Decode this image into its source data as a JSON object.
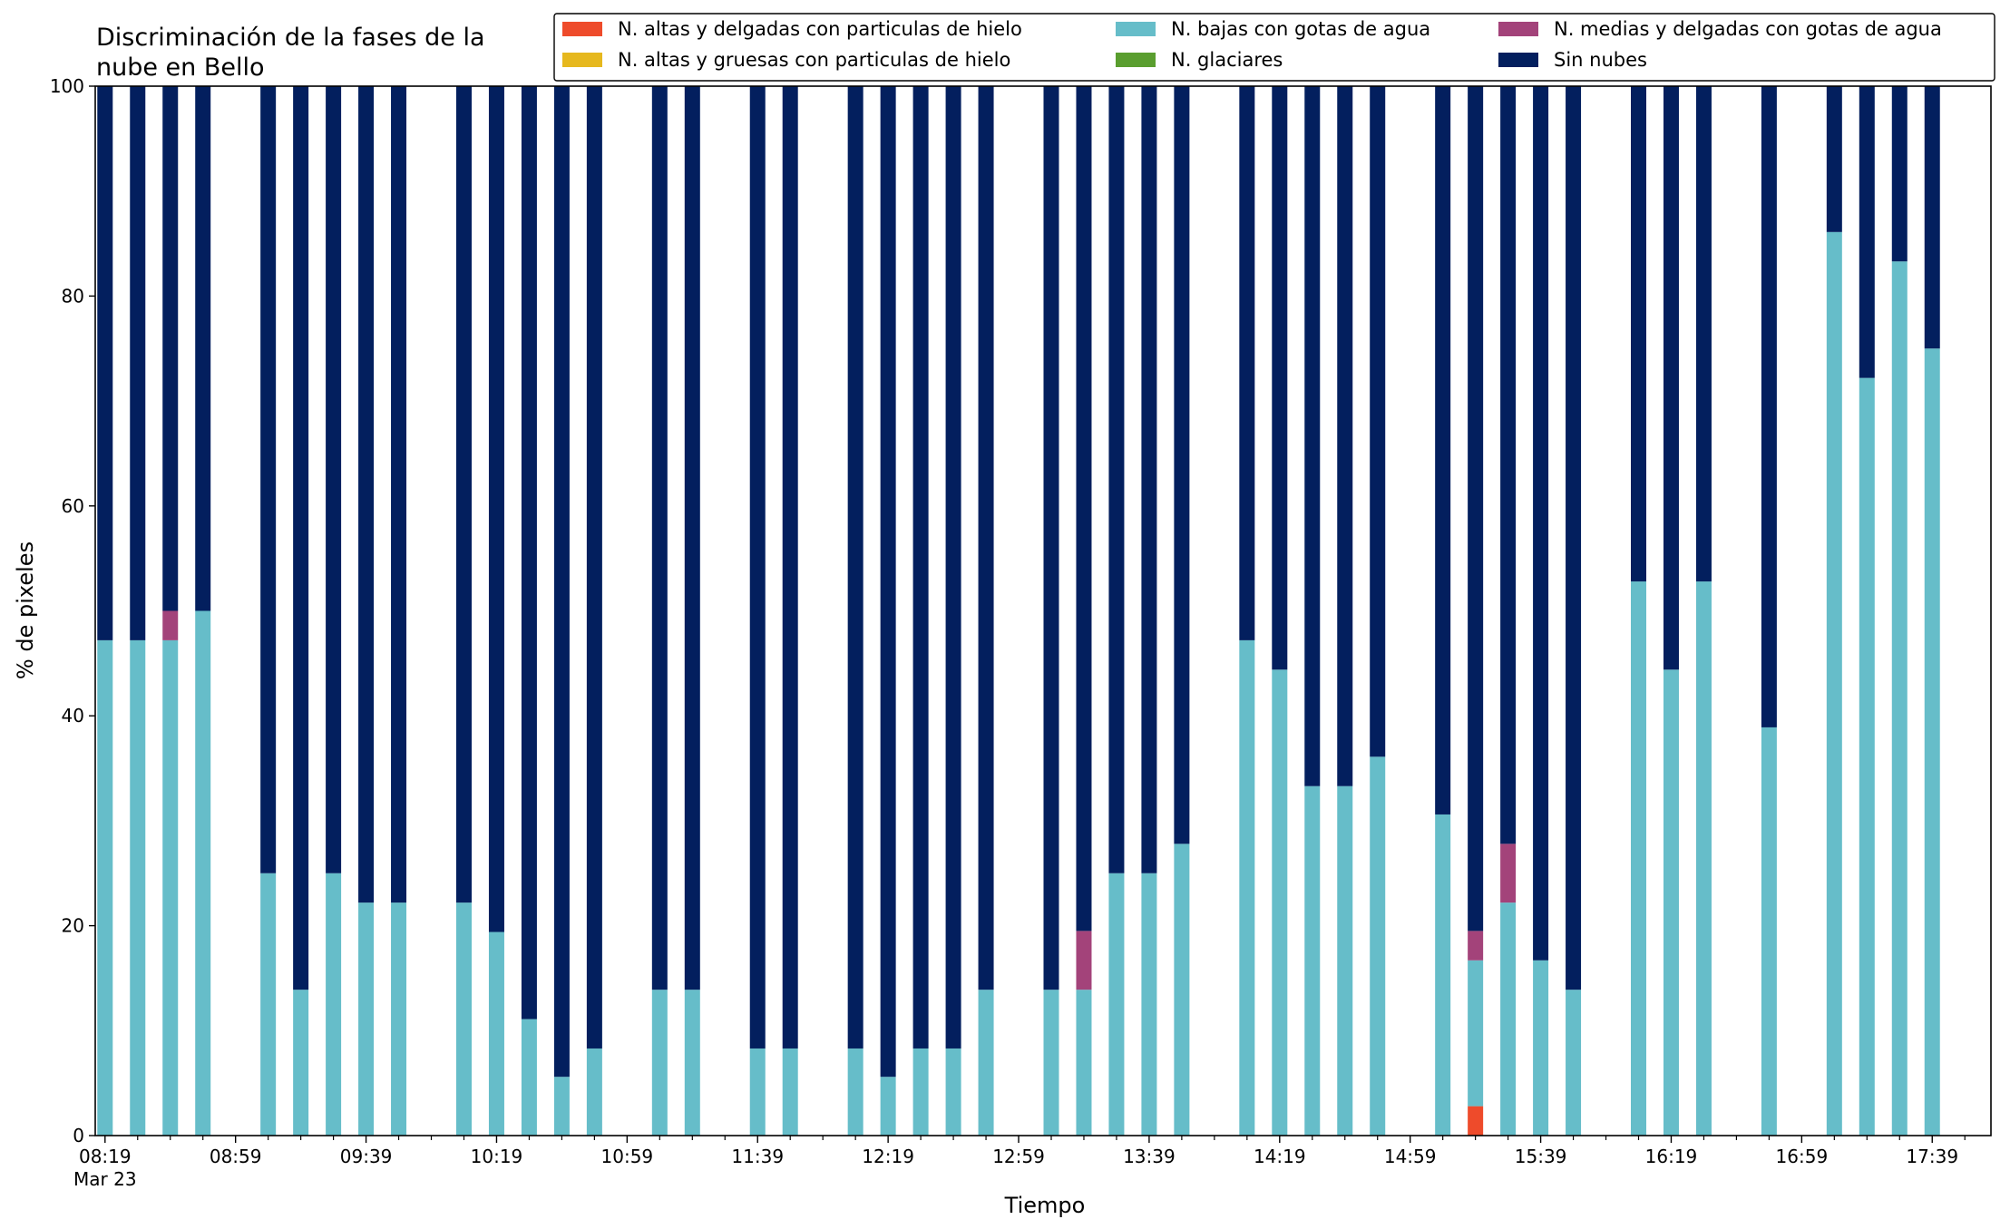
{
  "chart_data": {
    "type": "bar",
    "stacked": true,
    "title_lines": [
      "Discriminación de la fases de la",
      "nube en Bello"
    ],
    "xlabel": "Tiempo",
    "ylabel": "% de pixeles",
    "ylim": [
      0,
      100
    ],
    "yticks": [
      0,
      20,
      40,
      60,
      80,
      100
    ],
    "x_unit": "minutes since 08:19",
    "xlim": [
      -3,
      578
    ],
    "xticks": [
      {
        "m": 0,
        "label": "08:19",
        "label2": "Mar 23"
      },
      {
        "m": 40,
        "label": "08:59"
      },
      {
        "m": 80,
        "label": "09:39"
      },
      {
        "m": 120,
        "label": "10:19"
      },
      {
        "m": 160,
        "label": "10:59"
      },
      {
        "m": 200,
        "label": "11:39"
      },
      {
        "m": 240,
        "label": "12:19"
      },
      {
        "m": 280,
        "label": "12:59"
      },
      {
        "m": 320,
        "label": "13:39"
      },
      {
        "m": 360,
        "label": "14:19"
      },
      {
        "m": 400,
        "label": "14:59"
      },
      {
        "m": 440,
        "label": "15:39"
      },
      {
        "m": 480,
        "label": "16:19"
      },
      {
        "m": 520,
        "label": "16:59"
      },
      {
        "m": 560,
        "label": "17:39"
      }
    ],
    "grid": false,
    "legend_position": "top-right",
    "series": [
      {
        "key": "altas_delgadas_hielo",
        "name": "N. altas y delgadas con particulas de hielo",
        "color": "#ee4b2b"
      },
      {
        "key": "altas_gruesas_hielo",
        "name": "N. altas y gruesas con particulas de hielo",
        "color": "#e6b81e"
      },
      {
        "key": "bajas_agua",
        "name": "N. bajas con gotas de agua",
        "color": "#66bdc9"
      },
      {
        "key": "glaciares",
        "name": "N. glaciares",
        "color": "#5a9e2f"
      },
      {
        "key": "medias_delgadas_agua",
        "name": "N. medias y delgadas con gotas de agua",
        "color": "#a3437a"
      },
      {
        "key": "sin_nubes",
        "name": "Sin nubes",
        "color": "#031f5e"
      }
    ],
    "stack_order": [
      "altas_delgadas_hielo",
      "altas_gruesas_hielo",
      "bajas_agua",
      "glaciares",
      "medias_delgadas_agua",
      "sin_nubes"
    ],
    "legend_order": [
      "altas_delgadas_hielo",
      "altas_gruesas_hielo",
      "bajas_agua",
      "glaciares",
      "medias_delgadas_agua",
      "sin_nubes"
    ],
    "bars": [
      {
        "m": 0,
        "altas_delgadas_hielo": 0,
        "altas_gruesas_hielo": 0,
        "bajas_agua": 47.2,
        "glaciares": 0,
        "medias_delgadas_agua": 0,
        "sin_nubes": 52.8
      },
      {
        "m": 10,
        "altas_delgadas_hielo": 0,
        "altas_gruesas_hielo": 0,
        "bajas_agua": 47.2,
        "glaciares": 0,
        "medias_delgadas_agua": 0,
        "sin_nubes": 52.8
      },
      {
        "m": 20,
        "altas_delgadas_hielo": 0,
        "altas_gruesas_hielo": 0,
        "bajas_agua": 47.2,
        "glaciares": 0,
        "medias_delgadas_agua": 2.8,
        "sin_nubes": 50.0
      },
      {
        "m": 30,
        "altas_delgadas_hielo": 0,
        "altas_gruesas_hielo": 0,
        "bajas_agua": 50.0,
        "glaciares": 0,
        "medias_delgadas_agua": 0,
        "sin_nubes": 50.0
      },
      {
        "m": 50,
        "altas_delgadas_hielo": 0,
        "altas_gruesas_hielo": 0,
        "bajas_agua": 25.0,
        "glaciares": 0,
        "medias_delgadas_agua": 0,
        "sin_nubes": 75.0
      },
      {
        "m": 60,
        "altas_delgadas_hielo": 0,
        "altas_gruesas_hielo": 0,
        "bajas_agua": 13.9,
        "glaciares": 0,
        "medias_delgadas_agua": 0,
        "sin_nubes": 86.1
      },
      {
        "m": 70,
        "altas_delgadas_hielo": 0,
        "altas_gruesas_hielo": 0,
        "bajas_agua": 25.0,
        "glaciares": 0,
        "medias_delgadas_agua": 0,
        "sin_nubes": 75.0
      },
      {
        "m": 80,
        "altas_delgadas_hielo": 0,
        "altas_gruesas_hielo": 0,
        "bajas_agua": 22.2,
        "glaciares": 0,
        "medias_delgadas_agua": 0,
        "sin_nubes": 77.8
      },
      {
        "m": 90,
        "altas_delgadas_hielo": 0,
        "altas_gruesas_hielo": 0,
        "bajas_agua": 22.2,
        "glaciares": 0,
        "medias_delgadas_agua": 0,
        "sin_nubes": 77.8
      },
      {
        "m": 110,
        "altas_delgadas_hielo": 0,
        "altas_gruesas_hielo": 0,
        "bajas_agua": 22.2,
        "glaciares": 0,
        "medias_delgadas_agua": 0,
        "sin_nubes": 77.8
      },
      {
        "m": 120,
        "altas_delgadas_hielo": 0,
        "altas_gruesas_hielo": 0,
        "bajas_agua": 19.4,
        "glaciares": 0,
        "medias_delgadas_agua": 0,
        "sin_nubes": 80.6
      },
      {
        "m": 130,
        "altas_delgadas_hielo": 0,
        "altas_gruesas_hielo": 0,
        "bajas_agua": 11.1,
        "glaciares": 0,
        "medias_delgadas_agua": 0,
        "sin_nubes": 88.9
      },
      {
        "m": 140,
        "altas_delgadas_hielo": 0,
        "altas_gruesas_hielo": 0,
        "bajas_agua": 5.6,
        "glaciares": 0,
        "medias_delgadas_agua": 0,
        "sin_nubes": 94.4
      },
      {
        "m": 150,
        "altas_delgadas_hielo": 0,
        "altas_gruesas_hielo": 0,
        "bajas_agua": 8.3,
        "glaciares": 0,
        "medias_delgadas_agua": 0,
        "sin_nubes": 91.7
      },
      {
        "m": 170,
        "altas_delgadas_hielo": 0,
        "altas_gruesas_hielo": 0,
        "bajas_agua": 13.9,
        "glaciares": 0,
        "medias_delgadas_agua": 0,
        "sin_nubes": 86.1
      },
      {
        "m": 180,
        "altas_delgadas_hielo": 0,
        "altas_gruesas_hielo": 0,
        "bajas_agua": 13.9,
        "glaciares": 0,
        "medias_delgadas_agua": 0,
        "sin_nubes": 86.1
      },
      {
        "m": 200,
        "altas_delgadas_hielo": 0,
        "altas_gruesas_hielo": 0,
        "bajas_agua": 8.3,
        "glaciares": 0,
        "medias_delgadas_agua": 0,
        "sin_nubes": 91.7
      },
      {
        "m": 210,
        "altas_delgadas_hielo": 0,
        "altas_gruesas_hielo": 0,
        "bajas_agua": 8.3,
        "glaciares": 0,
        "medias_delgadas_agua": 0,
        "sin_nubes": 91.7
      },
      {
        "m": 230,
        "altas_delgadas_hielo": 0,
        "altas_gruesas_hielo": 0,
        "bajas_agua": 8.3,
        "glaciares": 0,
        "medias_delgadas_agua": 0,
        "sin_nubes": 91.7
      },
      {
        "m": 240,
        "altas_delgadas_hielo": 0,
        "altas_gruesas_hielo": 0,
        "bajas_agua": 5.6,
        "glaciares": 0,
        "medias_delgadas_agua": 0,
        "sin_nubes": 94.4
      },
      {
        "m": 250,
        "altas_delgadas_hielo": 0,
        "altas_gruesas_hielo": 0,
        "bajas_agua": 8.3,
        "glaciares": 0,
        "medias_delgadas_agua": 0,
        "sin_nubes": 91.7
      },
      {
        "m": 260,
        "altas_delgadas_hielo": 0,
        "altas_gruesas_hielo": 0,
        "bajas_agua": 8.3,
        "glaciares": 0,
        "medias_delgadas_agua": 0,
        "sin_nubes": 91.7
      },
      {
        "m": 270,
        "altas_delgadas_hielo": 0,
        "altas_gruesas_hielo": 0,
        "bajas_agua": 13.9,
        "glaciares": 0,
        "medias_delgadas_agua": 0,
        "sin_nubes": 86.1
      },
      {
        "m": 290,
        "altas_delgadas_hielo": 0,
        "altas_gruesas_hielo": 0,
        "bajas_agua": 13.9,
        "glaciares": 0,
        "medias_delgadas_agua": 0,
        "sin_nubes": 86.1
      },
      {
        "m": 300,
        "altas_delgadas_hielo": 0,
        "altas_gruesas_hielo": 0,
        "bajas_agua": 13.9,
        "glaciares": 0,
        "medias_delgadas_agua": 5.6,
        "sin_nubes": 80.5
      },
      {
        "m": 310,
        "altas_delgadas_hielo": 0,
        "altas_gruesas_hielo": 0,
        "bajas_agua": 25.0,
        "glaciares": 0,
        "medias_delgadas_agua": 0,
        "sin_nubes": 75.0
      },
      {
        "m": 320,
        "altas_delgadas_hielo": 0,
        "altas_gruesas_hielo": 0,
        "bajas_agua": 25.0,
        "glaciares": 0,
        "medias_delgadas_agua": 0,
        "sin_nubes": 75.0
      },
      {
        "m": 330,
        "altas_delgadas_hielo": 0,
        "altas_gruesas_hielo": 0,
        "bajas_agua": 27.8,
        "glaciares": 0,
        "medias_delgadas_agua": 0,
        "sin_nubes": 72.2
      },
      {
        "m": 350,
        "altas_delgadas_hielo": 0,
        "altas_gruesas_hielo": 0,
        "bajas_agua": 47.2,
        "glaciares": 0,
        "medias_delgadas_agua": 0,
        "sin_nubes": 52.8
      },
      {
        "m": 360,
        "altas_delgadas_hielo": 0,
        "altas_gruesas_hielo": 0,
        "bajas_agua": 44.4,
        "glaciares": 0,
        "medias_delgadas_agua": 0,
        "sin_nubes": 55.6
      },
      {
        "m": 370,
        "altas_delgadas_hielo": 0,
        "altas_gruesas_hielo": 0,
        "bajas_agua": 33.3,
        "glaciares": 0,
        "medias_delgadas_agua": 0,
        "sin_nubes": 66.7
      },
      {
        "m": 380,
        "altas_delgadas_hielo": 0,
        "altas_gruesas_hielo": 0,
        "bajas_agua": 33.3,
        "glaciares": 0,
        "medias_delgadas_agua": 0,
        "sin_nubes": 66.7
      },
      {
        "m": 390,
        "altas_delgadas_hielo": 0,
        "altas_gruesas_hielo": 0,
        "bajas_agua": 36.1,
        "glaciares": 0,
        "medias_delgadas_agua": 0,
        "sin_nubes": 63.9
      },
      {
        "m": 410,
        "altas_delgadas_hielo": 0,
        "altas_gruesas_hielo": 0,
        "bajas_agua": 30.6,
        "glaciares": 0,
        "medias_delgadas_agua": 0,
        "sin_nubes": 69.4
      },
      {
        "m": 420,
        "altas_delgadas_hielo": 2.8,
        "altas_gruesas_hielo": 0,
        "bajas_agua": 13.9,
        "glaciares": 0,
        "medias_delgadas_agua": 2.8,
        "sin_nubes": 80.5
      },
      {
        "m": 430,
        "altas_delgadas_hielo": 0,
        "altas_gruesas_hielo": 0,
        "bajas_agua": 22.2,
        "glaciares": 0,
        "medias_delgadas_agua": 5.6,
        "sin_nubes": 72.2
      },
      {
        "m": 440,
        "altas_delgadas_hielo": 0,
        "altas_gruesas_hielo": 0,
        "bajas_agua": 16.7,
        "glaciares": 0,
        "medias_delgadas_agua": 0,
        "sin_nubes": 83.3
      },
      {
        "m": 450,
        "altas_delgadas_hielo": 0,
        "altas_gruesas_hielo": 0,
        "bajas_agua": 13.9,
        "glaciares": 0,
        "medias_delgadas_agua": 0,
        "sin_nubes": 86.1
      },
      {
        "m": 470,
        "altas_delgadas_hielo": 0,
        "altas_gruesas_hielo": 0,
        "bajas_agua": 52.8,
        "glaciares": 0,
        "medias_delgadas_agua": 0,
        "sin_nubes": 47.2
      },
      {
        "m": 480,
        "altas_delgadas_hielo": 0,
        "altas_gruesas_hielo": 0,
        "bajas_agua": 44.4,
        "glaciares": 0,
        "medias_delgadas_agua": 0,
        "sin_nubes": 55.6
      },
      {
        "m": 490,
        "altas_delgadas_hielo": 0,
        "altas_gruesas_hielo": 0,
        "bajas_agua": 52.8,
        "glaciares": 0,
        "medias_delgadas_agua": 0,
        "sin_nubes": 47.2
      },
      {
        "m": 510,
        "altas_delgadas_hielo": 0,
        "altas_gruesas_hielo": 0,
        "bajas_agua": 38.9,
        "glaciares": 0,
        "medias_delgadas_agua": 0,
        "sin_nubes": 61.1
      },
      {
        "m": 530,
        "altas_delgadas_hielo": 0,
        "altas_gruesas_hielo": 0,
        "bajas_agua": 86.1,
        "glaciares": 0,
        "medias_delgadas_agua": 0,
        "sin_nubes": 13.9
      },
      {
        "m": 540,
        "altas_delgadas_hielo": 0,
        "altas_gruesas_hielo": 0,
        "bajas_agua": 72.2,
        "glaciares": 0,
        "medias_delgadas_agua": 0,
        "sin_nubes": 27.8
      },
      {
        "m": 550,
        "altas_delgadas_hielo": 0,
        "altas_gruesas_hielo": 0,
        "bajas_agua": 83.3,
        "glaciares": 0,
        "medias_delgadas_agua": 0,
        "sin_nubes": 16.7
      },
      {
        "m": 560,
        "altas_delgadas_hielo": 0,
        "altas_gruesas_hielo": 0,
        "bajas_agua": 75.0,
        "glaciares": 0,
        "medias_delgadas_agua": 0,
        "sin_nubes": 25.0
      }
    ]
  }
}
